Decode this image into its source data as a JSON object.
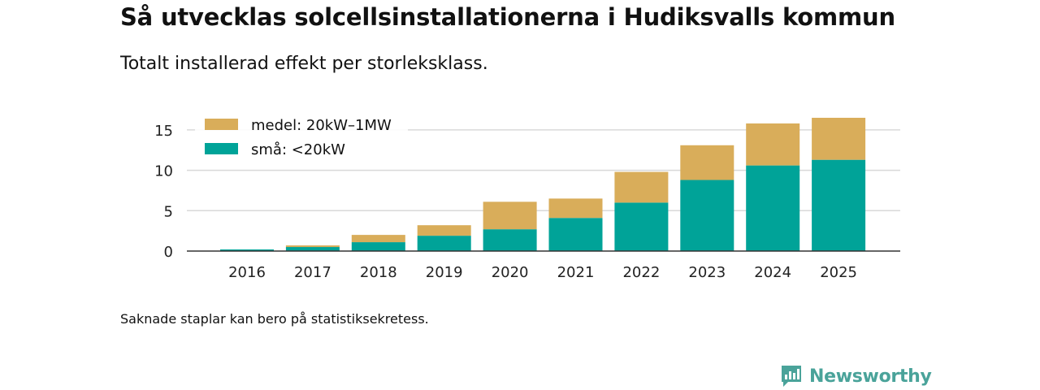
{
  "title": "Så utvecklas solcellsinstallationerna i Hudiksvalls kommun",
  "subtitle": "Totalt installerad effekt per storleksklass.",
  "note": "Saknade staplar kan bero på statistiksekretess.",
  "brand": {
    "name": "Newsworthy",
    "color": "#4aa39a"
  },
  "chart_data": {
    "type": "bar",
    "stacked": true,
    "categories": [
      "2016",
      "2017",
      "2018",
      "2019",
      "2020",
      "2021",
      "2022",
      "2023",
      "2024",
      "2025"
    ],
    "series": [
      {
        "name": "små: <20kW",
        "color": "#00a398",
        "values": [
          0.2,
          0.5,
          1.1,
          1.9,
          2.7,
          4.1,
          6.0,
          8.8,
          10.6,
          11.3
        ]
      },
      {
        "name": "medel: 20kW–1MW",
        "color": "#d9ad5a",
        "values": [
          0.0,
          0.2,
          0.9,
          1.3,
          3.4,
          2.4,
          3.8,
          4.3,
          5.2,
          5.2
        ]
      }
    ],
    "legend": [
      {
        "name": "medel: 20kW–1MW",
        "color": "#d9ad5a"
      },
      {
        "name": "små: <20kW",
        "color": "#00a398"
      }
    ],
    "ylim": [
      0,
      17
    ],
    "yticks": [
      0,
      5,
      10,
      15
    ],
    "xlabel": "",
    "ylabel": "",
    "grid": true,
    "legend_position": "top-left"
  }
}
